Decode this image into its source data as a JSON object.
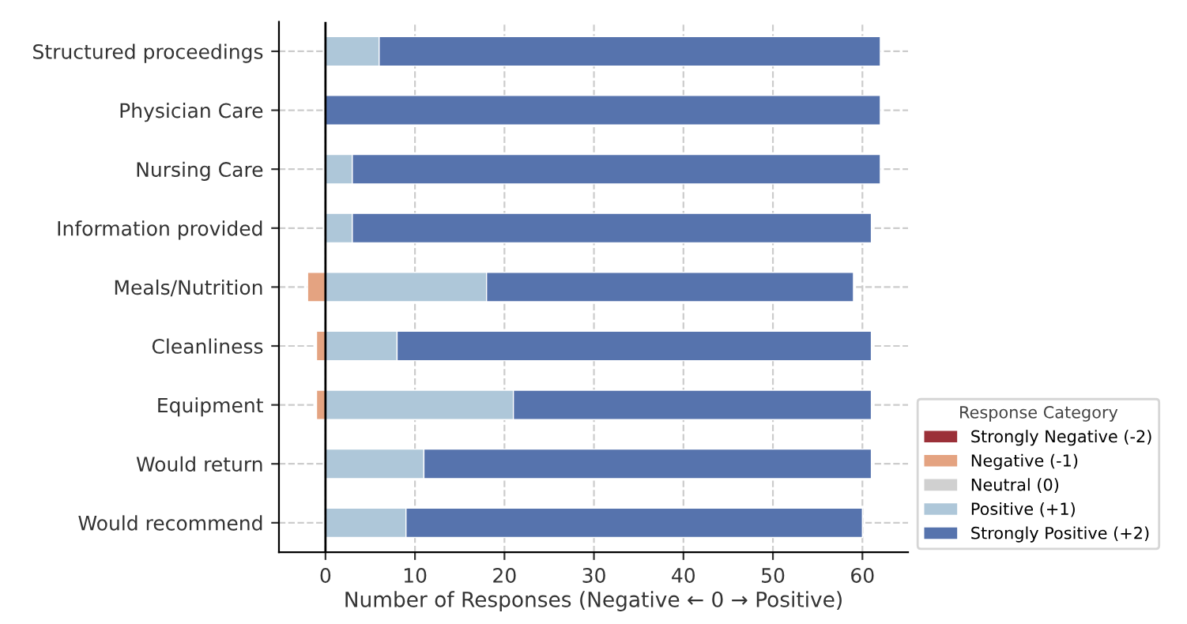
{
  "chart_data": {
    "type": "bar",
    "orientation": "horizontal",
    "stacked": true,
    "xlabel": "Number of Responses (Negative ← 0 → Positive)",
    "legend_title": "Response Category",
    "categories": [
      "Structured proceedings",
      "Physician Care",
      "Nursing Care",
      "Information provided",
      "Meals/Nutrition",
      "Cleanliness",
      "Equipment",
      "Would return",
      "Would recommend"
    ],
    "series": [
      {
        "name": "Strongly Negative (-2)",
        "color": "#9b3038",
        "values": [
          0,
          0,
          0,
          0,
          0,
          0,
          0,
          0,
          0
        ]
      },
      {
        "name": "Negative (-1)",
        "color": "#e4a381",
        "values": [
          0,
          0,
          0,
          0,
          -2,
          -1,
          -1,
          0,
          0
        ]
      },
      {
        "name": "Neutral (0)",
        "color": "#d0d0d0",
        "values": [
          0,
          0,
          0,
          0,
          0,
          0,
          0,
          0,
          0
        ]
      },
      {
        "name": "Positive (+1)",
        "color": "#aec7d9",
        "values": [
          6,
          0,
          3,
          3,
          18,
          8,
          21,
          11,
          9
        ]
      },
      {
        "name": "Strongly Positive (+2)",
        "color": "#5673ad",
        "values": [
          56,
          62,
          59,
          58,
          41,
          53,
          40,
          50,
          51
        ]
      }
    ],
    "xlim": [
      -5.2,
      65.1
    ],
    "xticks": [
      0,
      10,
      20,
      30,
      40,
      50,
      60
    ],
    "ref_lines": [
      {
        "axis": "x",
        "value": 0,
        "color": "#000000"
      }
    ],
    "grid": true,
    "legend": "right"
  }
}
